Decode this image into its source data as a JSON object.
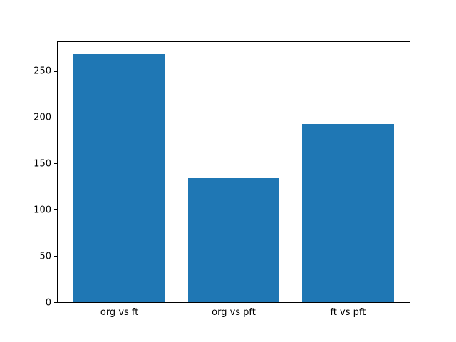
{
  "figure": {
    "background": "#ffffff"
  },
  "chart_data": {
    "type": "bar",
    "title": "",
    "xlabel": "",
    "ylabel": "",
    "categories": [
      "org vs ft",
      "org vs pft",
      "ft vs pft"
    ],
    "values": [
      268,
      134,
      193
    ],
    "x_positions": [
      0,
      1,
      2
    ],
    "bar_width": 0.8,
    "yticks": [
      0,
      50,
      100,
      150,
      200,
      250
    ],
    "ylim": [
      0,
      281.4
    ],
    "xlim": [
      -0.54,
      2.54
    ],
    "bar_color": "#1f77b4",
    "axis_color": "#000000",
    "tick_label_color": "#000000",
    "grid": false,
    "legend": false
  }
}
